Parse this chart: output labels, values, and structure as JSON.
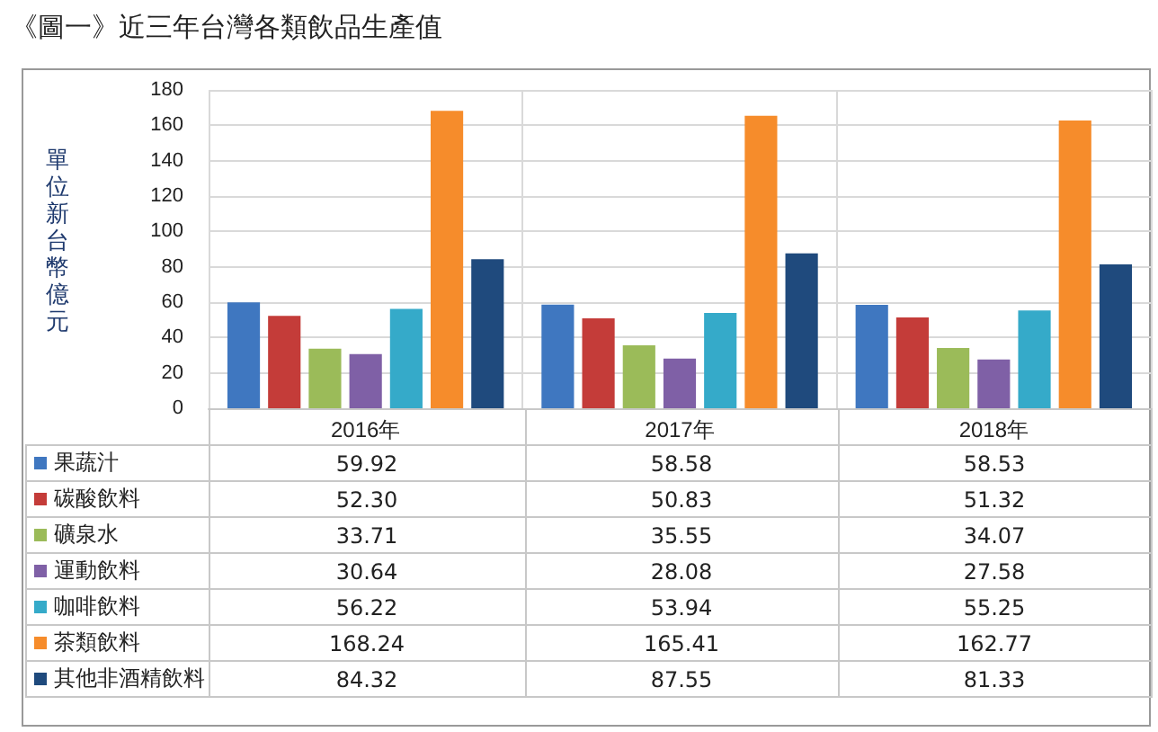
{
  "chart_data": {
    "type": "bar",
    "title": "《圖一》近三年台灣各類飲品生產值",
    "ylabel": "單位新台幣億元",
    "categories": [
      "2016年",
      "2017年",
      "2018年"
    ],
    "series": [
      {
        "name": "果蔬汁",
        "color": "#3f77c0",
        "values": [
          59.92,
          58.58,
          58.53
        ],
        "value_labels": [
          "59.92",
          "58.58",
          "58.53"
        ]
      },
      {
        "name": "碳酸飲料",
        "color": "#c43c39",
        "values": [
          52.3,
          50.83,
          51.32
        ],
        "value_labels": [
          "52.30",
          "50.83",
          "51.32"
        ]
      },
      {
        "name": "礦泉水",
        "color": "#9bbb59",
        "values": [
          33.71,
          35.55,
          34.07
        ],
        "value_labels": [
          "33.71",
          "35.55",
          "34.07"
        ]
      },
      {
        "name": "運動飲料",
        "color": "#7f60a6",
        "values": [
          30.64,
          28.08,
          27.58
        ],
        "value_labels": [
          "30.64",
          "28.08",
          "27.58"
        ]
      },
      {
        "name": "咖啡飲料",
        "color": "#35aac9",
        "values": [
          56.22,
          53.94,
          55.25
        ],
        "value_labels": [
          "56.22",
          "53.94",
          "55.25"
        ]
      },
      {
        "name": "茶類飲料",
        "color": "#f68c2b",
        "values": [
          168.24,
          165.41,
          162.77
        ],
        "value_labels": [
          "168.24",
          "165.41",
          "162.77"
        ]
      },
      {
        "name": "其他非酒精飲料",
        "color": "#1f4a7d",
        "values": [
          84.32,
          87.55,
          81.33
        ],
        "value_labels": [
          "84.32",
          "87.55",
          "81.33"
        ]
      }
    ],
    "ylim": [
      0,
      180
    ],
    "yticks": [
      0,
      20,
      40,
      60,
      80,
      100,
      120,
      140,
      160,
      180
    ],
    "grid": true,
    "legend": "bottom"
  }
}
